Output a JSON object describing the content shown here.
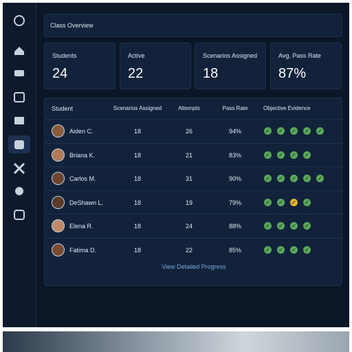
{
  "header": {
    "title": "Class Overview"
  },
  "stats": [
    {
      "label": "Students",
      "value": 24
    },
    {
      "label": "Active",
      "value": 22
    },
    {
      "label": "Scenarios Assigned",
      "value": 18
    },
    {
      "label": "Avg. Pass Rate",
      "value": "87%"
    }
  ],
  "table": {
    "columns": [
      "Student",
      "Scenarios Assigned",
      "Attempts",
      "Pass Rate",
      "Objective Evidence"
    ],
    "rows": [
      [
        "Aiden C.",
        18,
        26,
        "94%"
      ],
      [
        "Briana K.",
        18,
        21,
        "83%"
      ],
      [
        "Carlos M.",
        18,
        31,
        "90%"
      ],
      [
        "DeShawn L.",
        18,
        19,
        "79%"
      ],
      [
        "Elena R.",
        18,
        24,
        "88%"
      ],
      [
        "Fatima D.",
        18,
        22,
        "85%"
      ]
    ]
  },
  "footer": {
    "link": "View Detailed Progress"
  }
}
